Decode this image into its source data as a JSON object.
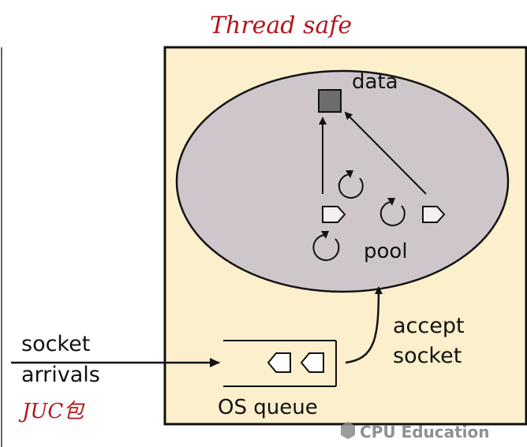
{
  "annotations": {
    "handwritten_top": "Thread safe",
    "handwritten_bottom": "JUC包"
  },
  "labels": {
    "data": "data",
    "pool": "pool",
    "accept_line1": "accept",
    "accept_line2": "socket",
    "socket_line1": "socket",
    "socket_line2": "arrivals",
    "os_queue": "OS queue"
  },
  "watermark": {
    "text": "CPU Education"
  },
  "colors": {
    "server_fill": "#fbefcc",
    "pool_fill": "#cfc6cb",
    "data_fill": "#6c6c6c",
    "stroke": "#111111",
    "annotation": "#b3161b",
    "watermark": "#7d7d7d"
  }
}
